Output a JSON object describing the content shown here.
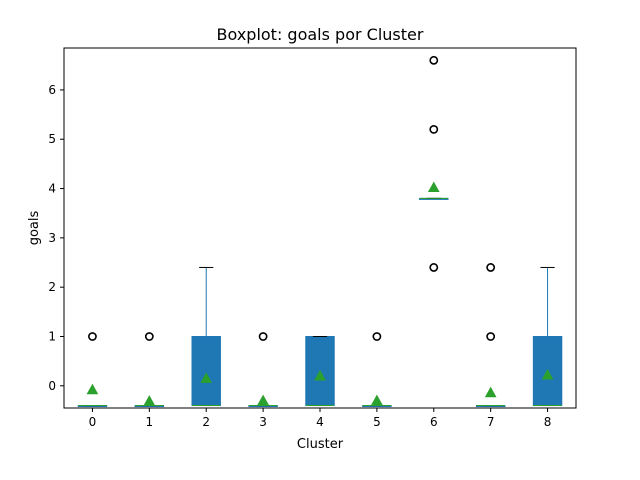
{
  "chart_data": {
    "type": "boxplot",
    "title": "Boxplot: goals por Cluster",
    "xlabel": "Cluster",
    "ylabel": "goals",
    "ylim": [
      -0.45,
      6.85
    ],
    "yticks": [
      0,
      1,
      2,
      3,
      4,
      5,
      6
    ],
    "grid": false,
    "legend": "none",
    "colors": {
      "box": "#1f77b4",
      "median": "#2ca02c",
      "mean": "#2ca02c",
      "whisker": "#1f77b4",
      "cap": "#000000",
      "flier": "#000000"
    },
    "categories": [
      "0",
      "1",
      "2",
      "3",
      "4",
      "5",
      "6",
      "7",
      "8"
    ],
    "boxes": [
      {
        "label": "0",
        "q1": -0.4,
        "median": -0.4,
        "q3": -0.4,
        "whislo": -0.4,
        "whishi": -0.4,
        "mean": -0.08,
        "fliers": [
          1.0
        ]
      },
      {
        "label": "1",
        "q1": -0.4,
        "median": -0.4,
        "q3": -0.4,
        "whislo": -0.4,
        "whishi": -0.4,
        "mean": -0.31,
        "fliers": [
          1.0
        ]
      },
      {
        "label": "2",
        "q1": -0.4,
        "median": -0.4,
        "q3": 1.0,
        "whislo": -0.4,
        "whishi": 2.4,
        "mean": 0.15,
        "fliers": []
      },
      {
        "label": "3",
        "q1": -0.4,
        "median": -0.4,
        "q3": -0.4,
        "whislo": -0.4,
        "whishi": -0.4,
        "mean": -0.3,
        "fliers": [
          1.0
        ]
      },
      {
        "label": "4",
        "q1": -0.4,
        "median": -0.4,
        "q3": 1.0,
        "whislo": -0.4,
        "whishi": 1.0,
        "mean": 0.2,
        "fliers": []
      },
      {
        "label": "5",
        "q1": -0.4,
        "median": -0.4,
        "q3": -0.4,
        "whislo": -0.4,
        "whishi": -0.4,
        "mean": -0.3,
        "fliers": [
          1.0
        ]
      },
      {
        "label": "6",
        "q1": 3.8,
        "median": 3.8,
        "q3": 3.8,
        "whislo": 3.8,
        "whishi": 3.8,
        "mean": 4.02,
        "fliers": [
          2.4,
          5.2,
          6.6
        ]
      },
      {
        "label": "7",
        "q1": -0.4,
        "median": -0.4,
        "q3": -0.4,
        "whislo": -0.4,
        "whishi": -0.4,
        "mean": -0.14,
        "fliers": [
          1.0,
          2.4
        ]
      },
      {
        "label": "8",
        "q1": -0.4,
        "median": -0.4,
        "q3": 1.0,
        "whislo": -0.4,
        "whishi": 2.4,
        "mean": 0.22,
        "fliers": []
      }
    ]
  }
}
